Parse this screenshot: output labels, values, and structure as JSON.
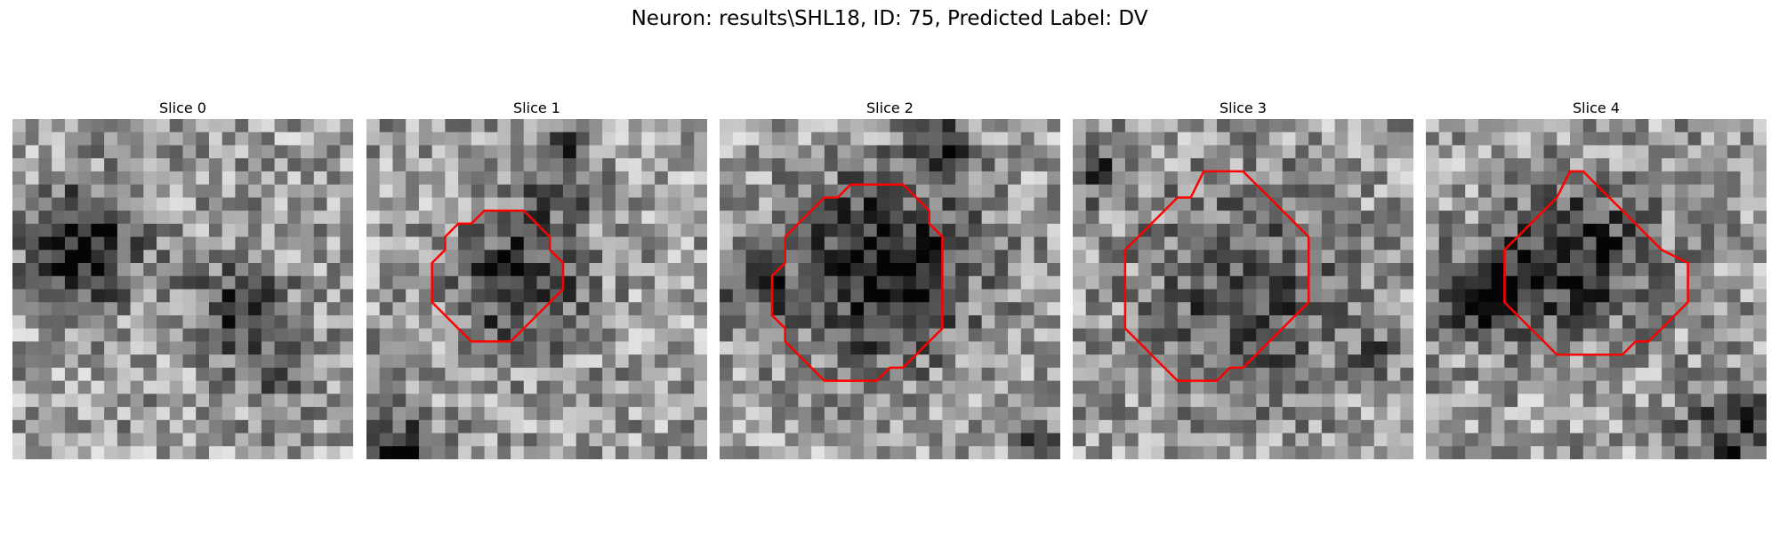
{
  "title": "Neuron: results\\SHL18, ID: 75, Predicted Label: DV",
  "panels": [
    {
      "title": "Slice 0"
    },
    {
      "title": "Slice 1"
    },
    {
      "title": "Slice 2"
    },
    {
      "title": "Slice 3"
    },
    {
      "title": "Slice 4"
    }
  ],
  "contour_color": "#ff0000"
}
